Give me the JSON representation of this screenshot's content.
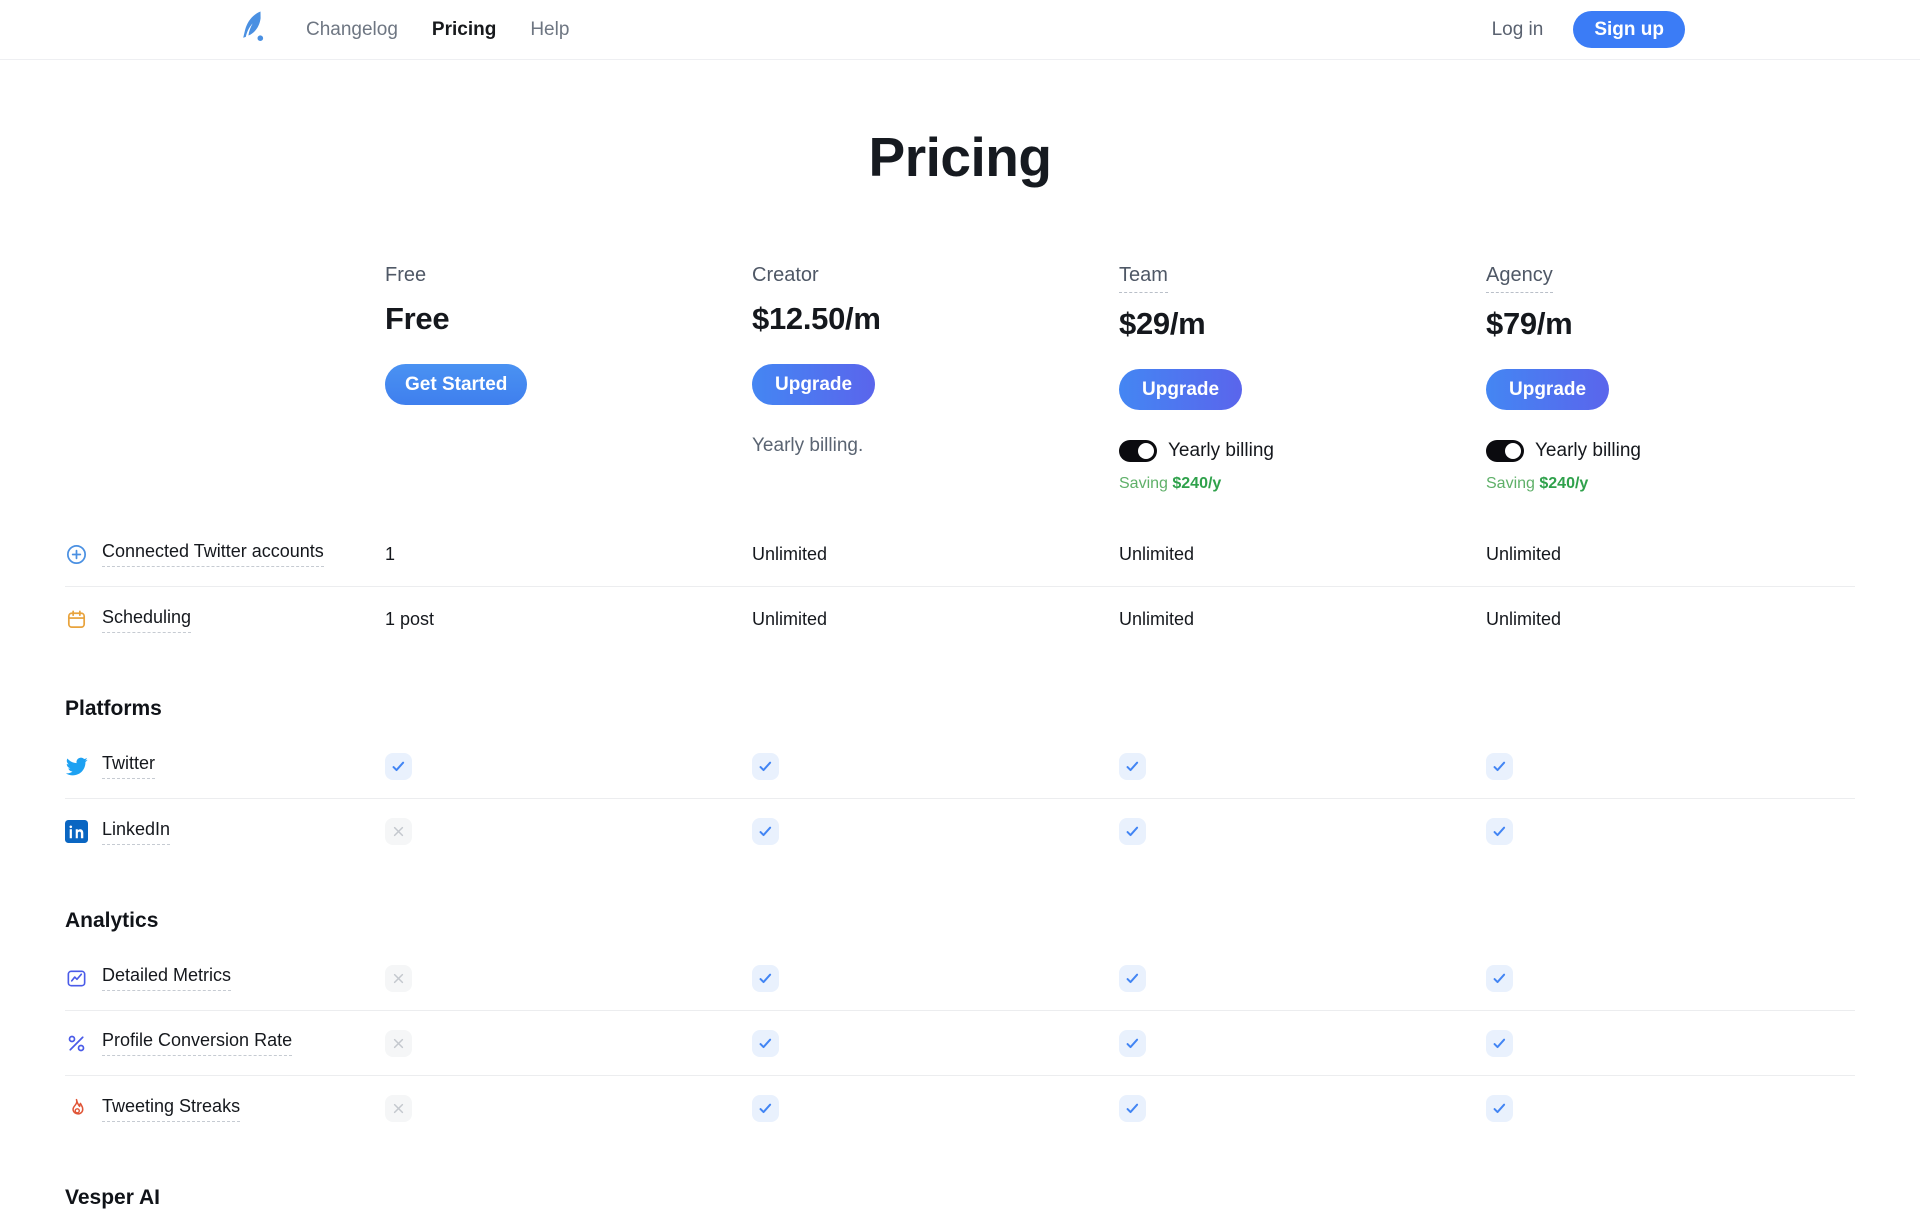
{
  "nav": {
    "logo": "quill-feather-logo",
    "links": [
      {
        "label": "Changelog",
        "active": false
      },
      {
        "label": "Pricing",
        "active": true
      },
      {
        "label": "Help",
        "active": false
      }
    ],
    "login_label": "Log in",
    "signup_label": "Sign up"
  },
  "page_title": "Pricing",
  "plans": [
    {
      "name": "Free",
      "price": "Free",
      "button_label": "Get Started",
      "billing_note": "",
      "has_toggle": false,
      "toggle_label": "",
      "saving_prefix": "",
      "saving_amount": ""
    },
    {
      "name": "Creator",
      "price": "$12.50/m",
      "button_label": "Upgrade",
      "billing_note": "Yearly billing.",
      "has_toggle": false,
      "toggle_label": "",
      "saving_prefix": "",
      "saving_amount": ""
    },
    {
      "name": "Team",
      "price": "$29/m",
      "button_label": "Upgrade",
      "billing_note": "",
      "has_toggle": true,
      "toggle_label": "Yearly billing",
      "toggle_state": "on",
      "saving_prefix": "Saving",
      "saving_amount": "$240/y"
    },
    {
      "name": "Agency",
      "price": "$79/m",
      "button_label": "Upgrade",
      "billing_note": "",
      "has_toggle": true,
      "toggle_label": "Yearly billing",
      "toggle_state": "on",
      "saving_prefix": "Saving",
      "saving_amount": "$240/y"
    }
  ],
  "feature_sections": [
    {
      "title": "",
      "rows": [
        {
          "icon": "circle-plus-icon",
          "label": "Connected Twitter accounts",
          "values": [
            "1",
            "Unlimited",
            "Unlimited",
            "Unlimited"
          ]
        },
        {
          "icon": "calendar-icon",
          "label": "Scheduling",
          "values": [
            "1 post",
            "Unlimited",
            "Unlimited",
            "Unlimited"
          ]
        }
      ]
    },
    {
      "title": "Platforms",
      "rows": [
        {
          "icon": "twitter-icon",
          "label": "Twitter",
          "values": [
            "check",
            "check",
            "check",
            "check"
          ]
        },
        {
          "icon": "linkedin-icon",
          "label": "LinkedIn",
          "values": [
            "cross",
            "check",
            "check",
            "check"
          ]
        }
      ]
    },
    {
      "title": "Analytics",
      "rows": [
        {
          "icon": "chart-metrics-icon",
          "label": "Detailed Metrics",
          "values": [
            "cross",
            "check",
            "check",
            "check"
          ]
        },
        {
          "icon": "percent-icon",
          "label": "Profile Conversion Rate",
          "values": [
            "cross",
            "check",
            "check",
            "check"
          ]
        },
        {
          "icon": "flame-icon",
          "label": "Tweeting Streaks",
          "values": [
            "cross",
            "check",
            "check",
            "check"
          ]
        }
      ]
    },
    {
      "title": "Vesper AI",
      "rows": []
    }
  ],
  "colors": {
    "accent_blue": "#4285F4",
    "upgrade_gradient_start": "#4486F3",
    "upgrade_gradient_end": "#5A65EC",
    "signup_blue": "#3B7CF6",
    "saving_green": "#2FA14B",
    "twitter_blue": "#1DA1F2",
    "linkedin_blue": "#0A66C2",
    "calendar_orange": "#E8A33D",
    "analytics_indigo": "#4A5BE8",
    "flame_red": "#E05537",
    "check_tile_bg": "#E9F1FD",
    "cross_tile_bg": "#F5F6F7",
    "cross_gray": "#C4C8CE",
    "toggle_black": "#0B0B0F"
  }
}
